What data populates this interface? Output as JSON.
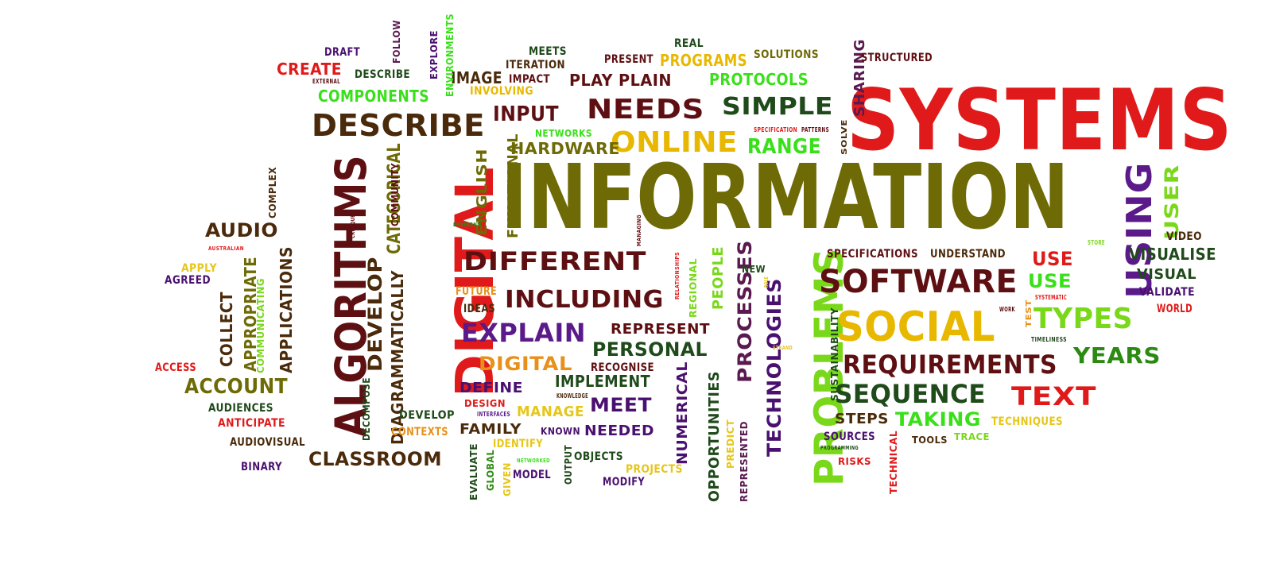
{
  "colors": {
    "red": "#e01a1a",
    "maroon": "#5e0f12",
    "darkred": "#7a1a1a",
    "olive": "#6e6a05",
    "gold": "#e8b800",
    "yellow": "#e6c619",
    "green": "#2c8a12",
    "lime": "#7ad81a",
    "brightgreen": "#39e01a",
    "purple": "#4a1070",
    "violet": "#5a1a8a",
    "brown": "#4a2a0a",
    "darkgreen": "#1f4a1a",
    "orange": "#e8901a",
    "plum": "#5a1a50"
  },
  "words": [
    {
      "text": "SYSTEMS",
      "color": "red"
    },
    {
      "text": "INFORMATION",
      "color": "olive"
    },
    {
      "text": "DIGITAL",
      "color": "red"
    },
    {
      "text": "ALGORITHMS",
      "color": "maroon"
    },
    {
      "text": "PROBLEMS",
      "color": "lime"
    },
    {
      "text": "USING",
      "color": "violet"
    },
    {
      "text": "SOCIAL",
      "color": "gold"
    },
    {
      "text": "SOFTWARE",
      "color": "maroon"
    },
    {
      "text": "DESCRIBE",
      "color": "brown"
    },
    {
      "text": "NEEDS",
      "color": "maroon"
    },
    {
      "text": "ONLINE",
      "color": "gold"
    },
    {
      "text": "SIMPLE",
      "color": "darkgreen"
    },
    {
      "text": "DIFFERENT",
      "color": "maroon"
    },
    {
      "text": "INCLUDING",
      "color": "maroon"
    },
    {
      "text": "EXPLAIN",
      "color": "violet"
    },
    {
      "text": "REQUIREMENTS",
      "color": "maroon"
    },
    {
      "text": "SEQUENCE",
      "color": "darkgreen"
    },
    {
      "text": "TEXT",
      "color": "red"
    },
    {
      "text": "TYPES",
      "color": "lime"
    },
    {
      "text": "YEARS",
      "color": "green"
    },
    {
      "text": "INPUT",
      "color": "maroon"
    },
    {
      "text": "RANGE",
      "color": "brightgreen"
    },
    {
      "text": "PERSONAL",
      "color": "darkgreen"
    },
    {
      "text": "DIGITAL",
      "color": "orange"
    },
    {
      "text": "ACCOUNT",
      "color": "olive"
    },
    {
      "text": "CLASSROOM",
      "color": "brown"
    },
    {
      "text": "AUDIO",
      "color": "brown"
    },
    {
      "text": "TAKING",
      "color": "brightgreen"
    },
    {
      "text": "USE",
      "color": "red"
    },
    {
      "text": "USE",
      "color": "brightgreen"
    },
    {
      "text": "USER",
      "color": "lime"
    },
    {
      "text": "PROCESSES",
      "color": "plum"
    },
    {
      "text": "TECHNOLOGIES",
      "color": "purple"
    },
    {
      "text": "CREATE",
      "color": "red"
    },
    {
      "text": "COMPONENTS",
      "color": "brightgreen"
    },
    {
      "text": "PROGRAMS",
      "color": "gold"
    },
    {
      "text": "PROTOCOLS",
      "color": "brightgreen"
    },
    {
      "text": "PLAY",
      "color": "maroon"
    },
    {
      "text": "PLAIN",
      "color": "maroon"
    },
    {
      "text": "IMAGE",
      "color": "brown"
    },
    {
      "text": "HARDWARE",
      "color": "olive"
    },
    {
      "text": "MEET",
      "color": "purple"
    },
    {
      "text": "IMPLEMENT",
      "color": "darkgreen"
    },
    {
      "text": "REPRESENT",
      "color": "maroon"
    },
    {
      "text": "DEFINE",
      "color": "purple"
    },
    {
      "text": "FAMILY",
      "color": "brown"
    },
    {
      "text": "MANAGE",
      "color": "yellow"
    },
    {
      "text": "NEEDED",
      "color": "purple"
    },
    {
      "text": "STEPS",
      "color": "brown"
    },
    {
      "text": "SHARING",
      "color": "plum"
    },
    {
      "text": "DEVELOP",
      "color": "brown"
    },
    {
      "text": "CATEGORICAL",
      "color": "olive"
    },
    {
      "text": "DIAGRAMMATICALLY",
      "color": "brown"
    },
    {
      "text": "APPLICATIONS",
      "color": "brown"
    },
    {
      "text": "APPROPRIATE",
      "color": "olive"
    },
    {
      "text": "COLLECT",
      "color": "brown"
    },
    {
      "text": "NUMERICAL",
      "color": "purple"
    },
    {
      "text": "OPPORTUNITIES",
      "color": "darkgreen"
    },
    {
      "text": "ENGLISH",
      "color": "olive"
    },
    {
      "text": "FUNCTIONAL",
      "color": "olive"
    },
    {
      "text": "PEOPLE",
      "color": "lime"
    },
    {
      "text": "VISUALISE",
      "color": "darkgreen"
    },
    {
      "text": "VISUAL",
      "color": "darkgreen"
    },
    {
      "text": "VALIDATE",
      "color": "purple"
    },
    {
      "text": "VIDEO",
      "color": "brown"
    },
    {
      "text": "WORLD",
      "color": "red"
    },
    {
      "text": "UNDERSTAND",
      "color": "brown"
    },
    {
      "text": "SPECIFICATIONS",
      "color": "maroon"
    },
    {
      "text": "STRUCTURED",
      "color": "maroon"
    },
    {
      "text": "SOLUTIONS",
      "color": "olive"
    },
    {
      "text": "REAL",
      "color": "darkgreen"
    },
    {
      "text": "PRESENT",
      "color": "maroon"
    },
    {
      "text": "MEETS",
      "color": "darkgreen"
    },
    {
      "text": "ITERATION",
      "color": "brown"
    },
    {
      "text": "IMPACT",
      "color": "maroon"
    },
    {
      "text": "INVOLVING",
      "color": "gold"
    },
    {
      "text": "DESCRIBE",
      "color": "darkgreen"
    },
    {
      "text": "DRAFT",
      "color": "purple"
    },
    {
      "text": "FOLLOW",
      "color": "plum"
    },
    {
      "text": "EXPLORE",
      "color": "purple"
    },
    {
      "text": "ENVIRONMENTS",
      "color": "brightgreen"
    },
    {
      "text": "NETWORKS",
      "color": "brightgreen"
    },
    {
      "text": "RECOGNISE",
      "color": "maroon"
    },
    {
      "text": "FUTURE",
      "color": "orange"
    },
    {
      "text": "IDEAS",
      "color": "brown"
    },
    {
      "text": "DESIGN",
      "color": "red"
    },
    {
      "text": "IDENTIFY",
      "color": "yellow"
    },
    {
      "text": "KNOWN",
      "color": "purple"
    },
    {
      "text": "OBJECTS",
      "color": "darkgreen"
    },
    {
      "text": "PROJECTS",
      "color": "yellow"
    },
    {
      "text": "MODIFY",
      "color": "purple"
    },
    {
      "text": "MODEL",
      "color": "purple"
    },
    {
      "text": "OUTPUT",
      "color": "darkgreen"
    },
    {
      "text": "EVALUATE",
      "color": "darkgreen"
    },
    {
      "text": "GLOBAL",
      "color": "green"
    },
    {
      "text": "GIVEN",
      "color": "yellow"
    },
    {
      "text": "DEVELOP",
      "color": "darkgreen"
    },
    {
      "text": "CONTEXTS",
      "color": "orange"
    },
    {
      "text": "DECOMPOSE",
      "color": "darkgreen"
    },
    {
      "text": "AUDIENCES",
      "color": "darkgreen"
    },
    {
      "text": "ANTICIPATE",
      "color": "red"
    },
    {
      "text": "AUDIOVISUAL",
      "color": "brown"
    },
    {
      "text": "BINARY",
      "color": "purple"
    },
    {
      "text": "ACCESS",
      "color": "red"
    },
    {
      "text": "AGREED",
      "color": "purple"
    },
    {
      "text": "APPLY",
      "color": "yellow"
    },
    {
      "text": "COMPLEX",
      "color": "brown"
    },
    {
      "text": "COMMUNICATING",
      "color": "lime"
    },
    {
      "text": "COMMUNITY",
      "color": "maroon"
    },
    {
      "text": "REGIONAL",
      "color": "lime"
    },
    {
      "text": "PREDICT",
      "color": "yellow"
    },
    {
      "text": "REPRESENTED",
      "color": "plum"
    },
    {
      "text": "SUSTAINABILITY",
      "color": "darkgreen"
    },
    {
      "text": "SOURCES",
      "color": "purple"
    },
    {
      "text": "RISKS",
      "color": "red"
    },
    {
      "text": "TOOLS",
      "color": "brown"
    },
    {
      "text": "TRACE",
      "color": "lime"
    },
    {
      "text": "TECHNIQUES",
      "color": "yellow"
    },
    {
      "text": "TECHNICAL",
      "color": "red"
    },
    {
      "text": "SOLVE",
      "color": "brown"
    },
    {
      "text": "NEW",
      "color": "darkgreen"
    },
    {
      "text": "TEST",
      "color": "orange"
    },
    {
      "text": "TIMELINESS",
      "color": "darkgreen"
    },
    {
      "text": "SYSTEMATIC",
      "color": "red"
    },
    {
      "text": "WORK",
      "color": "maroon"
    },
    {
      "text": "STORE",
      "color": "lime"
    },
    {
      "text": "EXTERNAL",
      "color": "maroon"
    },
    {
      "text": "SPECIFICATION",
      "color": "red"
    },
    {
      "text": "PATTERNS",
      "color": "maroon"
    },
    {
      "text": "INTERFACES",
      "color": "violet"
    },
    {
      "text": "KNOWLEDGE",
      "color": "brown"
    },
    {
      "text": "NETWORKED",
      "color": "brightgreen"
    },
    {
      "text": "PROGRAMMING",
      "color": "darkgreen"
    },
    {
      "text": "STRAND",
      "color": "yellow"
    },
    {
      "text": "ROLE",
      "color": "yellow"
    },
    {
      "text": "MANAGING",
      "color": "maroon"
    },
    {
      "text": "RELATIONSHIPS",
      "color": "red"
    },
    {
      "text": "CRITIQUE",
      "color": "maroon"
    },
    {
      "text": "ENVIRONM",
      "color": "green"
    },
    {
      "text": "AUSTRALIAN",
      "color": "red"
    }
  ]
}
